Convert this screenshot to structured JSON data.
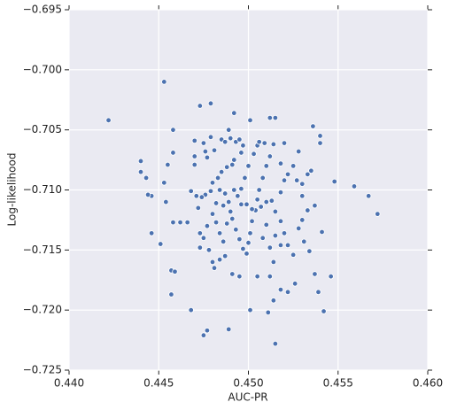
{
  "chart_data": {
    "type": "scatter",
    "xlabel": "AUC-PR",
    "ylabel": "Log-likelihood",
    "color": "#4c72b0",
    "grid": true,
    "xlim": [
      0.44,
      0.46
    ],
    "ylim": [
      -0.725,
      -0.695
    ],
    "xticks": [
      {
        "value": 0.44,
        "label": "0.440"
      },
      {
        "value": 0.445,
        "label": "0.445"
      },
      {
        "value": 0.45,
        "label": "0.450"
      },
      {
        "value": 0.455,
        "label": "0.455"
      },
      {
        "value": 0.46,
        "label": "0.460"
      }
    ],
    "yticks": [
      {
        "value": -0.725,
        "label": "−0.725"
      },
      {
        "value": -0.72,
        "label": "−0.720"
      },
      {
        "value": -0.715,
        "label": "−0.715"
      },
      {
        "value": -0.71,
        "label": "−0.710"
      },
      {
        "value": -0.705,
        "label": "−0.705"
      },
      {
        "value": -0.7,
        "label": "−0.700"
      },
      {
        "value": -0.695,
        "label": "−0.695"
      }
    ],
    "x": [
      0.4422,
      0.4453,
      0.4479,
      0.4473,
      0.4492,
      0.4501,
      0.4512,
      0.4536,
      0.4458,
      0.454,
      0.454,
      0.444,
      0.444,
      0.4443,
      0.4455,
      0.4458,
      0.447,
      0.447,
      0.447,
      0.4475,
      0.4476,
      0.4477,
      0.4479,
      0.4481,
      0.4485,
      0.4487,
      0.4489,
      0.449,
      0.4493,
      0.4495,
      0.4496,
      0.4492,
      0.4488,
      0.4485,
      0.4483,
      0.448,
      0.4479,
      0.4476,
      0.4474,
      0.4471,
      0.4468,
      0.4472,
      0.4453,
      0.4446,
      0.4444,
      0.4454,
      0.4446,
      0.4451,
      0.4458,
      0.4462,
      0.4466,
      0.4457,
      0.4459,
      0.4457,
      0.4468,
      0.4475,
      0.4477,
      0.4489,
      0.4501,
      0.4511,
      0.4515,
      0.4542,
      0.4539,
      0.4546,
      0.4537,
      0.4526,
      0.4522,
      0.4518,
      0.4514,
      0.4512,
      0.4505,
      0.4495,
      0.4491,
      0.4481,
      0.4478,
      0.4484,
      0.4487,
      0.4473,
      0.4473,
      0.4475,
      0.4477,
      0.448,
      0.4482,
      0.4484,
      0.4486,
      0.4488,
      0.449,
      0.4491,
      0.4493,
      0.4495,
      0.4497,
      0.4499,
      0.45,
      0.4501,
      0.4502,
      0.4504,
      0.4505,
      0.4506,
      0.4508,
      0.451,
      0.4512,
      0.4514,
      0.4509,
      0.4505,
      0.4503,
      0.45,
      0.4498,
      0.4496,
      0.4494,
      0.4492,
      0.4489,
      0.4487,
      0.4484,
      0.4482,
      0.4486,
      0.4496,
      0.4499,
      0.4502,
      0.4507,
      0.451,
      0.4513,
      0.4515,
      0.4518,
      0.452,
      0.4522,
      0.4525,
      0.4518,
      0.4515,
      0.451,
      0.4508,
      0.4512,
      0.4514,
      0.4518,
      0.452,
      0.4522,
      0.4518,
      0.4525,
      0.4527,
      0.453,
      0.4533,
      0.4535,
      0.453,
      0.4533,
      0.4537,
      0.453,
      0.4528,
      0.4531,
      0.4534,
      0.4541,
      0.4548,
      0.4559,
      0.4567,
      0.4572,
      0.452,
      0.4515,
      0.4528,
      0.4506,
      0.4497,
      0.4491,
      0.448
    ],
    "values": [
      -0.7042,
      -0.701,
      -0.7028,
      -0.703,
      -0.7036,
      -0.7042,
      -0.704,
      -0.7047,
      -0.705,
      -0.7055,
      -0.7061,
      -0.7076,
      -0.7085,
      -0.709,
      -0.7079,
      -0.7069,
      -0.7059,
      -0.7072,
      -0.7079,
      -0.7061,
      -0.7068,
      -0.7073,
      -0.7056,
      -0.7067,
      -0.7058,
      -0.706,
      -0.705,
      -0.7057,
      -0.706,
      -0.7058,
      -0.7069,
      -0.7075,
      -0.7081,
      -0.7085,
      -0.709,
      -0.7094,
      -0.7101,
      -0.7104,
      -0.7106,
      -0.7105,
      -0.7101,
      -0.7115,
      -0.7094,
      -0.7105,
      -0.7104,
      -0.711,
      -0.7136,
      -0.7145,
      -0.7127,
      -0.7127,
      -0.7127,
      -0.7167,
      -0.7168,
      -0.7187,
      -0.72,
      -0.7221,
      -0.7217,
      -0.7216,
      -0.72,
      -0.7202,
      -0.7228,
      -0.7201,
      -0.7185,
      -0.7172,
      -0.717,
      -0.7178,
      -0.7185,
      -0.7183,
      -0.7192,
      -0.7172,
      -0.7172,
      -0.7172,
      -0.717,
      -0.7165,
      -0.715,
      -0.7158,
      -0.7155,
      -0.7148,
      -0.7136,
      -0.714,
      -0.713,
      -0.712,
      -0.7127,
      -0.7136,
      -0.7143,
      -0.7128,
      -0.7118,
      -0.7124,
      -0.7133,
      -0.7141,
      -0.7149,
      -0.7153,
      -0.7144,
      -0.7136,
      -0.7126,
      -0.7117,
      -0.7108,
      -0.71,
      -0.709,
      -0.708,
      -0.7072,
      -0.7062,
      -0.7061,
      -0.7063,
      -0.707,
      -0.708,
      -0.709,
      -0.7099,
      -0.7105,
      -0.71,
      -0.711,
      -0.7103,
      -0.71,
      -0.7111,
      -0.7113,
      -0.7112,
      -0.7112,
      -0.7116,
      -0.7114,
      -0.711,
      -0.7109,
      -0.7118,
      -0.7126,
      -0.7136,
      -0.7146,
      -0.7154,
      -0.7146,
      -0.7138,
      -0.7129,
      -0.714,
      -0.7148,
      -0.716,
      -0.7102,
      -0.7092,
      -0.7087,
      -0.7078,
      -0.708,
      -0.7092,
      -0.7095,
      -0.7087,
      -0.7084,
      -0.7105,
      -0.7117,
      -0.7113,
      -0.7125,
      -0.7132,
      -0.7143,
      -0.7151,
      -0.7135,
      -0.7093,
      -0.7097,
      -0.7105,
      -0.712,
      -0.7061,
      -0.704,
      -0.7068,
      -0.706,
      -0.7063,
      -0.7079,
      -0.716
    ]
  }
}
